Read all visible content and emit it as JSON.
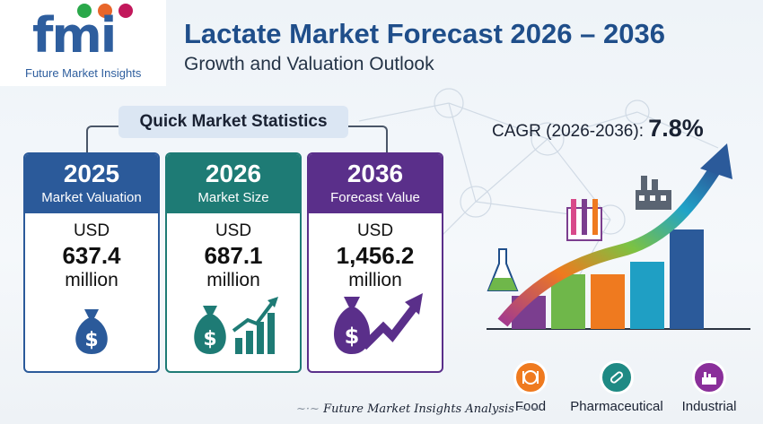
{
  "logo": {
    "letters": "fmi",
    "tagline": "Future Market Insights"
  },
  "header": {
    "title": "Lactate Market Forecast 2026 – 2036",
    "subtitle": "Growth and Valuation Outlook"
  },
  "stats": {
    "heading": "Quick Market Statistics",
    "cards": [
      {
        "year": "2025",
        "caption": "Market Valuation",
        "currency": "USD",
        "value": "637.4",
        "unit": "million",
        "color": "#2b5a9a"
      },
      {
        "year": "2026",
        "caption": "Market Size",
        "currency": "USD",
        "value": "687.1",
        "unit": "million",
        "color": "#1e7b75"
      },
      {
        "year": "2036",
        "caption": "Forecast Value",
        "currency": "USD",
        "value": "1,456.2",
        "unit": "million",
        "color": "#5a2f8a"
      }
    ]
  },
  "cagr": {
    "label": "CAGR (2026-2036): ",
    "value": "7.8%"
  },
  "legend": [
    {
      "label": "Food",
      "icon": "food-icon",
      "color": "#ef7a1f"
    },
    {
      "label": "Pharmaceutical",
      "icon": "pill-icon",
      "color": "#1f8a84"
    },
    {
      "label": "Industrial",
      "icon": "factory-icon",
      "color": "#8a2f9a"
    }
  ],
  "footer": {
    "text": "Future Market Insights Analysis"
  }
}
